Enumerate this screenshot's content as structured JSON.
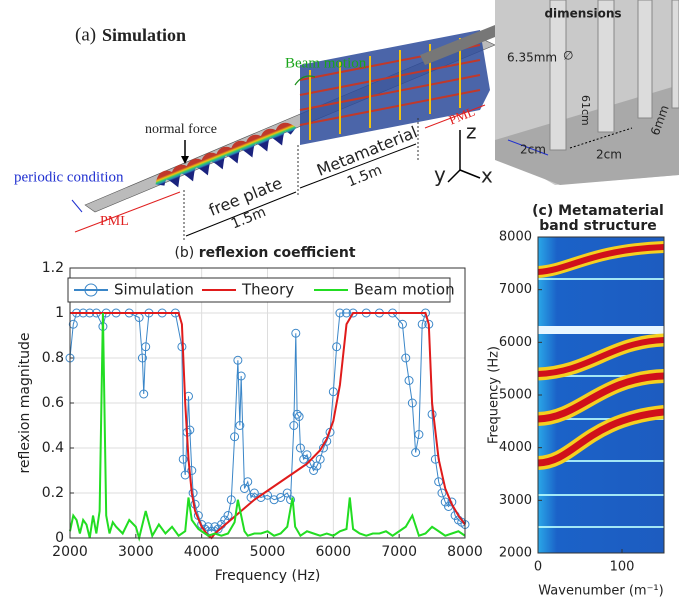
{
  "panel_a": {
    "label": "(a)",
    "title": "Simulation",
    "beam_motion": "Beam motion",
    "normal_force": "normal force",
    "periodic": "periodic condition",
    "pml_left": "PML",
    "pml_right": "PML",
    "free_plate": "free plate",
    "free_len": "1.5m",
    "metamaterial": "Metamaterial",
    "meta_len": "1.5m",
    "axis_z": "z",
    "axis_y": "y",
    "axis_x": "x",
    "dimensions": "dimensions",
    "diameter": "6.35mm",
    "diam_symbol": "∅",
    "height": "61cm",
    "spacing_a": "2cm",
    "spacing_b": "2cm",
    "thickness": "6mm"
  },
  "chart_data": [
    {
      "type": "line",
      "panel": "(b)",
      "title": "reflexion coefficient",
      "x_label": "Frequency (Hz)",
      "y_label": "reflexion magnitude",
      "xlim": [
        2000,
        8000
      ],
      "ylim": [
        0,
        1.2
      ],
      "xticks": [
        2000,
        3000,
        4000,
        5000,
        6000,
        7000,
        8000
      ],
      "yticks": [
        0,
        0.2,
        0.4,
        0.6,
        0.8,
        1,
        1.2
      ],
      "grid": true,
      "legend": "top",
      "series": [
        {
          "name": "Simulation",
          "color": "#3a86c8",
          "marker": "circle",
          "x": [
            2000,
            2050,
            2100,
            2200,
            2300,
            2400,
            2500,
            2550,
            2700,
            2900,
            3050,
            3100,
            3120,
            3150,
            3200,
            3400,
            3600,
            3700,
            3720,
            3750,
            3780,
            3800,
            3820,
            3850,
            3870,
            3900,
            3950,
            4000,
            4050,
            4100,
            4150,
            4200,
            4250,
            4300,
            4350,
            4400,
            4450,
            4500,
            4550,
            4580,
            4600,
            4650,
            4700,
            4750,
            4800,
            4900,
            5000,
            5100,
            5200,
            5300,
            5350,
            5400,
            5430,
            5450,
            5480,
            5500,
            5550,
            5600,
            5650,
            5700,
            5750,
            5800,
            5850,
            5900,
            5950,
            6000,
            6050,
            6100,
            6200,
            6300,
            6500,
            6700,
            6900,
            7050,
            7100,
            7150,
            7200,
            7250,
            7300,
            7350,
            7400,
            7450,
            7500,
            7550,
            7600,
            7650,
            7700,
            7750,
            7800,
            7850,
            7900,
            7950,
            8000
          ],
          "values": [
            0.8,
            0.95,
            1,
            1,
            1,
            1,
            0.94,
            1,
            1,
            1,
            0.98,
            0.8,
            0.64,
            0.85,
            1,
            1,
            1,
            0.85,
            0.35,
            0.28,
            0.47,
            0.63,
            0.48,
            0.3,
            0.2,
            0.15,
            0.1,
            0.06,
            0.04,
            0.05,
            0.03,
            0.05,
            0.04,
            0.06,
            0.08,
            0.1,
            0.17,
            0.45,
            0.79,
            0.5,
            0.72,
            0.22,
            0.25,
            0.18,
            0.2,
            0.18,
            0.19,
            0.17,
            0.18,
            0.2,
            0.17,
            0.5,
            0.91,
            0.55,
            0.54,
            0.4,
            0.35,
            0.37,
            0.33,
            0.3,
            0.32,
            0.35,
            0.4,
            0.43,
            0.47,
            0.65,
            0.85,
            1,
            1,
            1,
            1,
            1,
            1,
            0.95,
            0.8,
            0.7,
            0.6,
            0.38,
            0.46,
            0.95,
            1,
            0.95,
            0.55,
            0.35,
            0.25,
            0.2,
            0.16,
            0.14,
            0.16,
            0.1,
            0.08,
            0.07,
            0.06
          ]
        },
        {
          "name": "Theory",
          "color": "#e01b1b",
          "x": [
            2000,
            3650,
            3700,
            3750,
            3800,
            3850,
            3900,
            4000,
            4100,
            4150,
            4200,
            4400,
            4600,
            4800,
            5000,
            5200,
            5400,
            5600,
            5800,
            5900,
            6000,
            6100,
            6200,
            6300,
            7400,
            7450,
            7500,
            7600,
            7700,
            7800,
            7900,
            8000
          ],
          "values": [
            1,
            1,
            0.95,
            0.6,
            0.35,
            0.2,
            0.12,
            0.05,
            0.01,
            0,
            0.02,
            0.07,
            0.12,
            0.17,
            0.21,
            0.25,
            0.29,
            0.33,
            0.39,
            0.44,
            0.52,
            0.68,
            0.95,
            1,
            1,
            0.95,
            0.6,
            0.35,
            0.22,
            0.15,
            0.1,
            0.06
          ]
        },
        {
          "name": "Beam motion",
          "color": "#22dd22",
          "x": [
            2000,
            2050,
            2100,
            2150,
            2200,
            2250,
            2300,
            2350,
            2400,
            2450,
            2500,
            2550,
            2600,
            2650,
            2700,
            2800,
            2900,
            3000,
            3050,
            3150,
            3250,
            3350,
            3450,
            3550,
            3650,
            3750,
            3800,
            3850,
            3900,
            3950,
            4000,
            4100,
            4200,
            4300,
            4400,
            4500,
            4550,
            4600,
            4650,
            4700,
            4800,
            4900,
            5000,
            5100,
            5200,
            5300,
            5380,
            5420,
            5500,
            5600,
            5700,
            5800,
            5900,
            6000,
            6100,
            6200,
            6250,
            6300,
            6400,
            6500,
            6600,
            6700,
            6800,
            6900,
            7000,
            7100,
            7200,
            7300,
            7400,
            7500,
            7600,
            7700,
            7800,
            7900,
            8000
          ],
          "values": [
            0.03,
            0.1,
            0.08,
            0.02,
            0.08,
            0.06,
            0,
            0.1,
            0.02,
            0.12,
            1,
            0.1,
            0.02,
            0.07,
            0.05,
            0.02,
            0.08,
            0.05,
            0,
            0.12,
            0.01,
            0.06,
            0.02,
            0.05,
            0.01,
            0.03,
            0.18,
            0.08,
            0.06,
            0.04,
            0.03,
            0.01,
            0.02,
            0.01,
            0.02,
            0.07,
            0.17,
            0.1,
            0.03,
            0.01,
            0.02,
            0.02,
            0.03,
            0.01,
            0.02,
            0.05,
            0.18,
            0.05,
            0.01,
            0.03,
            0.02,
            0.01,
            0.02,
            0.01,
            0.03,
            0.04,
            0.18,
            0.04,
            0.02,
            0.01,
            0.02,
            0.02,
            0.03,
            0.01,
            0.03,
            0.05,
            0.1,
            0.01,
            0.02,
            0.05,
            0.03,
            0.01,
            0.02,
            0.03,
            0.01
          ]
        }
      ]
    },
    {
      "type": "heatmap",
      "title_lines": [
        "(c) Metamaterial",
        "band structure"
      ],
      "x_label": "Wavenumber (m⁻¹)",
      "y_label": "Frequency (Hz)",
      "xlim": [
        0,
        150
      ],
      "ylim": [
        2000,
        8000
      ],
      "xticks": [
        0,
        100
      ],
      "yticks": [
        2000,
        3000,
        4000,
        5000,
        6000,
        7000,
        8000
      ]
    }
  ]
}
